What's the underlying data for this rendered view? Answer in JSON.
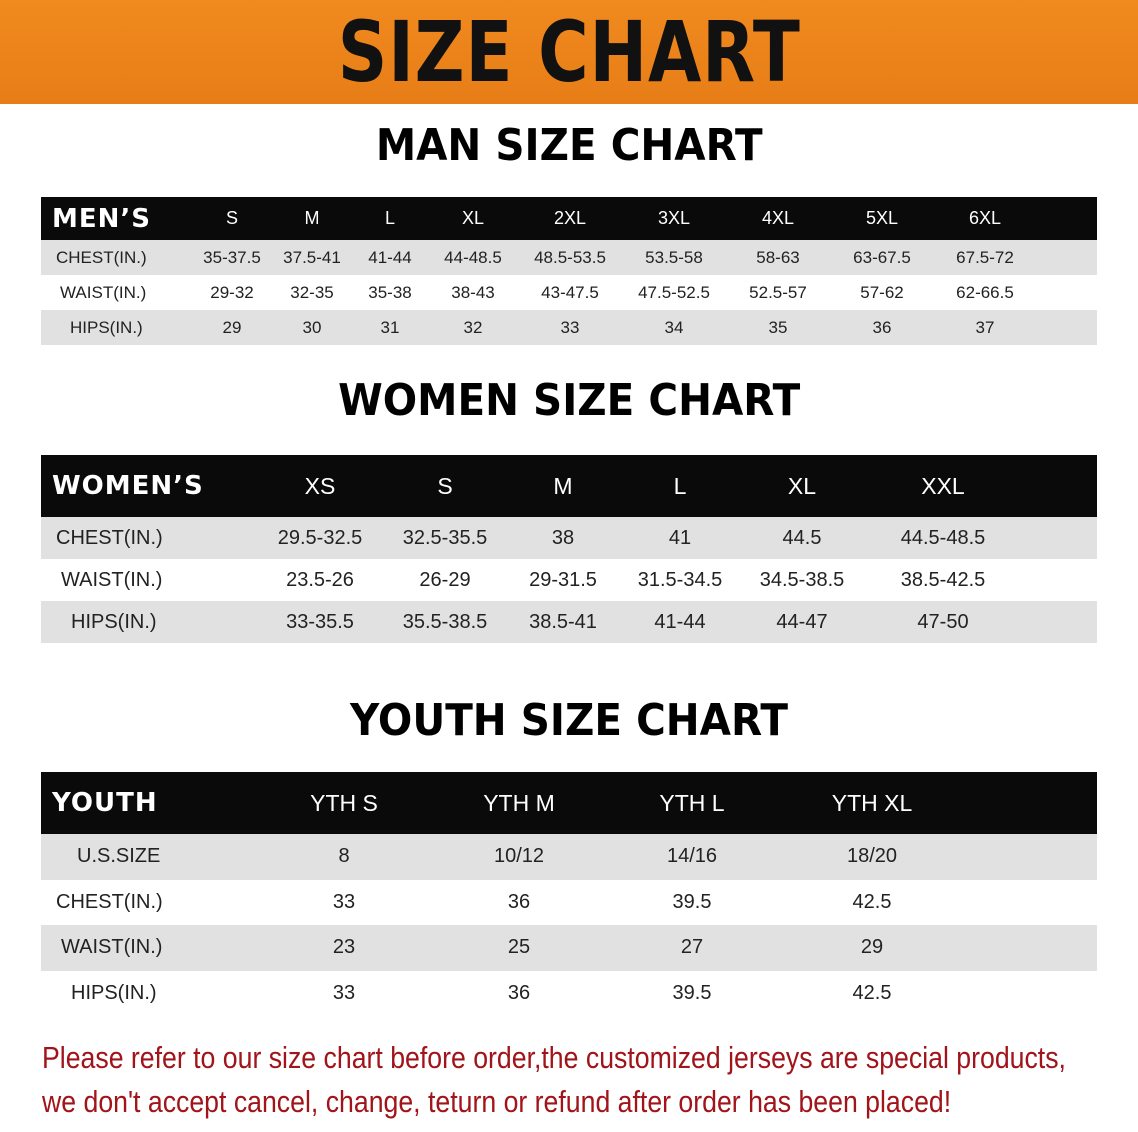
{
  "banner_title": "SIZE CHART",
  "men": {
    "title": "MAN SIZE CHART",
    "header_label": "MEN’S",
    "sizes": [
      "S",
      "M",
      "L",
      "XL",
      "2XL",
      "3XL",
      "4XL",
      "5XL",
      "6XL"
    ],
    "rows": [
      {
        "label": "CHEST(IN.)",
        "values": [
          "35-37.5",
          "37.5-41",
          "41-44",
          "44-48.5",
          "48.5-53.5",
          "53.5-58",
          "58-63",
          "63-67.5",
          "67.5-72"
        ]
      },
      {
        "label": "WAIST(IN.)",
        "values": [
          "29-32",
          "32-35",
          "35-38",
          "38-43",
          "43-47.5",
          "47.5-52.5",
          "52.5-57",
          "57-62",
          "62-66.5"
        ]
      },
      {
        "label": "HIPS(IN.)",
        "values": [
          "29",
          "30",
          "31",
          "32",
          "33",
          "34",
          "35",
          "36",
          "37"
        ]
      }
    ]
  },
  "women": {
    "title": "WOMEN SIZE CHART",
    "header_label": "WOMEN’S",
    "sizes": [
      "XS",
      "S",
      "M",
      "L",
      "XL",
      "XXL"
    ],
    "rows": [
      {
        "label": "CHEST(IN.)",
        "values": [
          "29.5-32.5",
          "32.5-35.5",
          "38",
          "41",
          "44.5",
          "44.5-48.5"
        ]
      },
      {
        "label": "WAIST(IN.)",
        "values": [
          "23.5-26",
          "26-29",
          "29-31.5",
          "31.5-34.5",
          "34.5-38.5",
          "38.5-42.5"
        ]
      },
      {
        "label": "HIPS(IN.)",
        "values": [
          "33-35.5",
          "35.5-38.5",
          "38.5-41",
          "41-44",
          "44-47",
          "47-50"
        ]
      }
    ]
  },
  "youth": {
    "title": "YOUTH SIZE CHART",
    "header_label": "YOUTH",
    "sizes": [
      "YTH S",
      "YTH M",
      "YTH L",
      "YTH XL"
    ],
    "rows": [
      {
        "label": "U.S.SIZE",
        "values": [
          "8",
          "10/12",
          "14/16",
          "18/20"
        ]
      },
      {
        "label": "CHEST(IN.)",
        "values": [
          "33",
          "36",
          "39.5",
          "42.5"
        ]
      },
      {
        "label": "WAIST(IN.)",
        "values": [
          "23",
          "25",
          "27",
          "29"
        ]
      },
      {
        "label": "HIPS(IN.)",
        "values": [
          "33",
          "36",
          "39.5",
          "42.5"
        ]
      }
    ]
  },
  "note": [
    "Please refer to our size chart before order,the customized jerseys are special products,",
    "we don't accept cancel, change, teturn or refund after order has been placed!"
  ],
  "colors": {
    "banner": "#e87f18",
    "header_row": "#0a0a0a",
    "stripe": "#e1e1e1",
    "note": "#a0141a"
  }
}
